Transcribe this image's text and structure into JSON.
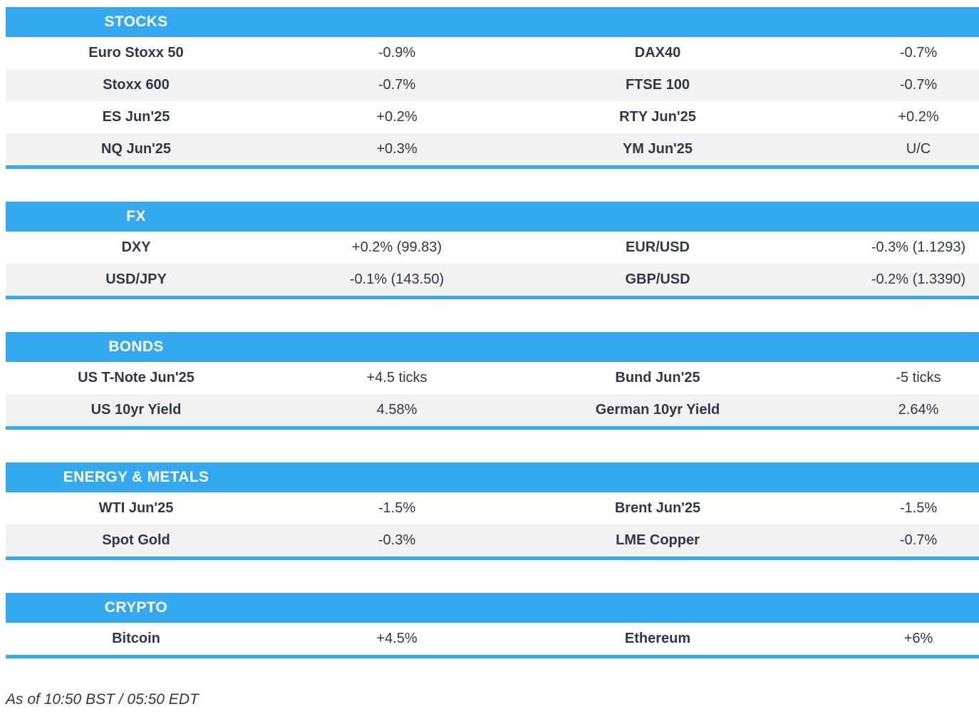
{
  "colors": {
    "accent": "#34a9f0",
    "row_alt": "#f2f2f2",
    "text": "#2d3948",
    "header_text": "#ffffff"
  },
  "sections": [
    {
      "id": "stocks",
      "title": "STOCKS",
      "rows": [
        [
          "Euro Stoxx 50",
          "-0.9%",
          "DAX40",
          "-0.7%"
        ],
        [
          "Stoxx 600",
          "-0.7%",
          "FTSE 100",
          "-0.7%"
        ],
        [
          "ES Jun'25",
          "+0.2%",
          "RTY Jun'25",
          "+0.2%"
        ],
        [
          "NQ Jun'25",
          "+0.3%",
          "YM Jun'25",
          "U/C"
        ]
      ]
    },
    {
      "id": "fx",
      "title": "FX",
      "rows": [
        [
          "DXY",
          "+0.2% (99.83)",
          "EUR/USD",
          "-0.3% (1.1293)"
        ],
        [
          "USD/JPY",
          "-0.1% (143.50)",
          "GBP/USD",
          "-0.2% (1.3390)"
        ]
      ]
    },
    {
      "id": "bonds",
      "title": "BONDS",
      "rows": [
        [
          "US T-Note Jun'25",
          "+4.5 ticks",
          "Bund Jun'25",
          "-5 ticks"
        ],
        [
          "US 10yr Yield",
          "4.58%",
          "German 10yr Yield",
          "2.64%"
        ]
      ]
    },
    {
      "id": "energy_metals",
      "title": "ENERGY & METALS",
      "rows": [
        [
          "WTI Jun'25",
          "-1.5%",
          "Brent Jun'25",
          "-1.5%"
        ],
        [
          "Spot Gold",
          "-0.3%",
          "LME Copper",
          "-0.7%"
        ]
      ]
    },
    {
      "id": "crypto",
      "title": "CRYPTO",
      "rows": [
        [
          "Bitcoin",
          "+4.5%",
          "Ethereum",
          "+6%"
        ]
      ]
    }
  ],
  "footer": {
    "as_of": "As of 10:50 BST / 05:50 EDT"
  }
}
